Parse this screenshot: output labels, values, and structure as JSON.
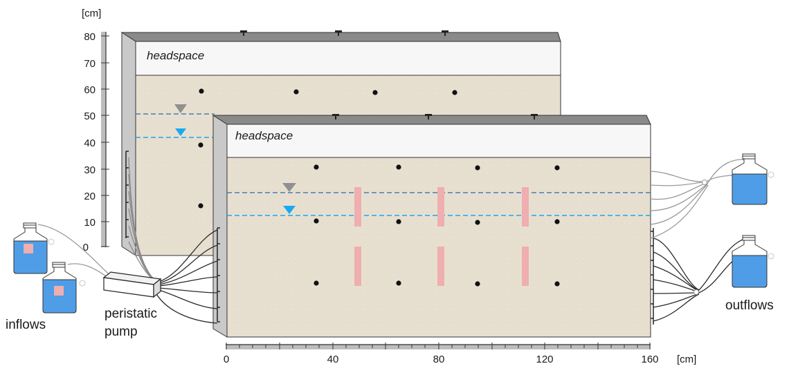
{
  "vertical_axis": {
    "unit": "[cm]",
    "ticks": [
      "80",
      "70",
      "60",
      "50",
      "40",
      "30",
      "20",
      "10",
      "0"
    ]
  },
  "horizontal_axis": {
    "unit": "[cm]",
    "ticks": [
      "0",
      "40",
      "80",
      "120",
      "160"
    ]
  },
  "tanks": {
    "back_headspace": "headspace",
    "front_headspace": "headspace"
  },
  "labels": {
    "inflows": "inflows",
    "pump_line1": "peristatic",
    "pump_line2": "pump",
    "outflows": "outflows"
  },
  "colors": {
    "sand": "#e7e0d1",
    "headspace": "#f7f7f7",
    "tank_side": "#c9c9c9",
    "water_level_high": "#4a7ab0",
    "water_level_low": "#1ea5e8",
    "marker_gray": "#909090",
    "marker_blue": "#19a9f0",
    "sensor_pink": "#efaeb0",
    "bottle_water": "#4f9de6",
    "tubing_dark": "#2a2a2a",
    "tubing_light": "#9a9a9a"
  }
}
